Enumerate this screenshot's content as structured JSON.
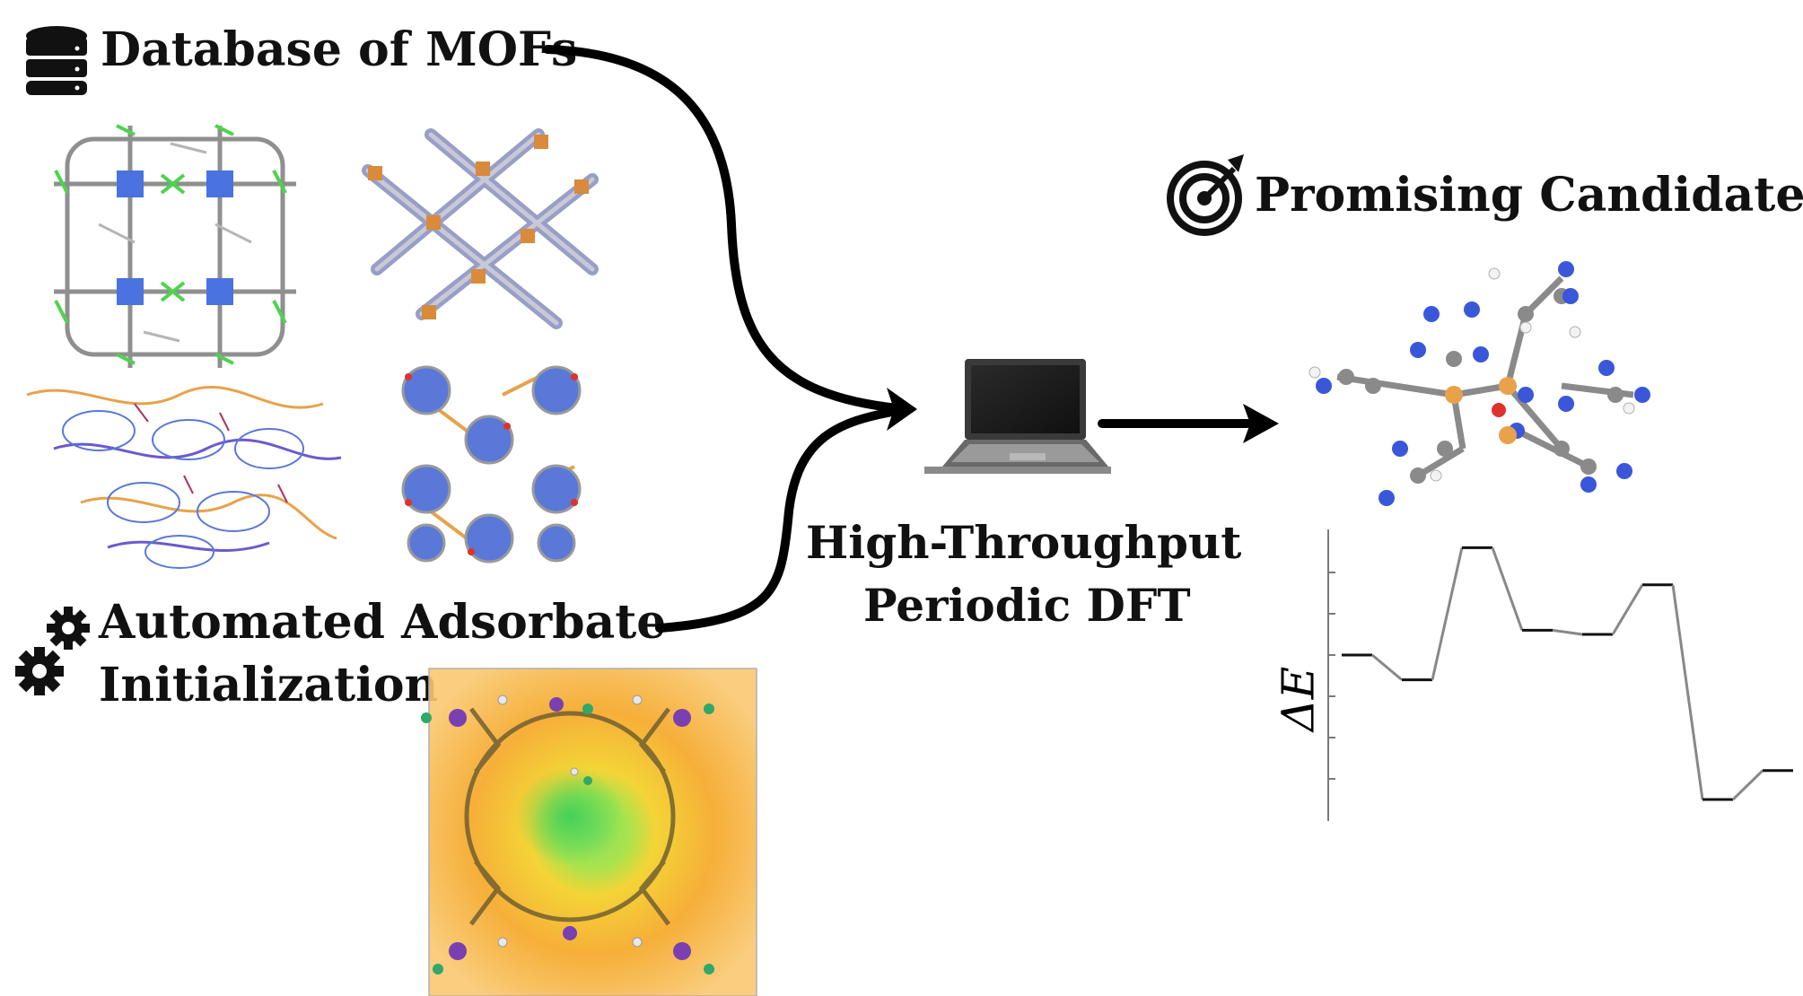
{
  "labels": {
    "database": "Database of MOFs",
    "automated_line1": "Automated Adsorbate",
    "automated_line2": "Initialization",
    "promising": "Promising Candidates",
    "htdft_line1": "High-Throughput",
    "htdft_line2": "Periodic DFT"
  },
  "icons": [
    "database-icon",
    "gears-icon",
    "target-icon",
    "laptop-icon"
  ],
  "energy_profile": {
    "ylabel": "ΔE",
    "levels": [
      0,
      -0.6,
      2.6,
      0.6,
      0.5,
      1.7,
      -3.5,
      -2.8
    ]
  },
  "colors": {
    "arrow": "#000000",
    "metal": "#e8a24a",
    "nitrogen": "#3b57d9",
    "carbon": "#8a8a8a",
    "zinc_green": "#52c852",
    "oxygen": "#e0322a",
    "hydrogen": "#f2f2f2",
    "profile_line": "#888888"
  }
}
